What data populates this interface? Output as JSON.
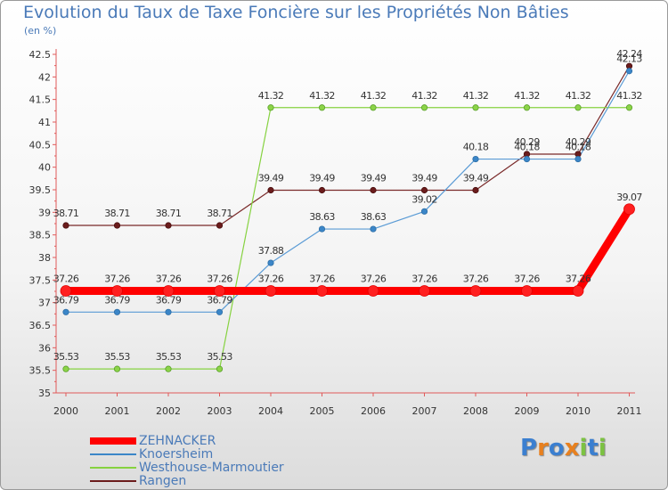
{
  "chart_data": {
    "type": "line",
    "title": "Evolution du Taux de Taxe Foncière sur les Propriétés Non Bâties",
    "unit_label": "(en %)",
    "x": [
      "2000",
      "2001",
      "2002",
      "2003",
      "2004",
      "2005",
      "2006",
      "2007",
      "2008",
      "2009",
      "2010",
      "2011"
    ],
    "ylim": [
      35,
      42.5
    ],
    "yticks": [
      "35",
      "35.5",
      "36",
      "36.5",
      "37",
      "37.5",
      "38",
      "38.5",
      "39",
      "39.5",
      "40",
      "40.5",
      "41",
      "41.5",
      "42",
      "42.5"
    ],
    "grid": false,
    "legend_position": "bottom-left",
    "series": [
      {
        "name": "ZEHNACKER",
        "color": "#ff0000",
        "values": [
          37.26,
          37.26,
          37.26,
          37.26,
          37.26,
          37.26,
          37.26,
          37.26,
          37.26,
          37.26,
          37.26,
          39.07
        ]
      },
      {
        "name": "Knoersheim",
        "color": "#3b86c8",
        "values": [
          36.79,
          36.79,
          36.79,
          36.79,
          37.88,
          38.63,
          38.63,
          39.02,
          40.18,
          40.18,
          40.18,
          42.13
        ]
      },
      {
        "name": "Westhouse-Marmoutier",
        "color": "#86d240",
        "values": [
          35.53,
          35.53,
          35.53,
          35.53,
          41.32,
          41.32,
          41.32,
          41.32,
          41.32,
          41.32,
          41.32,
          41.32
        ]
      },
      {
        "name": "Rangen",
        "color": "#6b1c1c",
        "values": [
          38.71,
          38.71,
          38.71,
          38.71,
          39.49,
          39.49,
          39.49,
          39.49,
          39.49,
          40.29,
          40.29,
          42.24
        ]
      }
    ]
  },
  "logo": {
    "letters": [
      "P",
      "r",
      "o",
      "x",
      "i",
      "t",
      "i"
    ],
    "colors": [
      "#3b7fd0",
      "#e8801e",
      "#3b7fd0",
      "#e8801e",
      "#7cc242",
      "#3b7fd0",
      "#7cc242"
    ]
  }
}
